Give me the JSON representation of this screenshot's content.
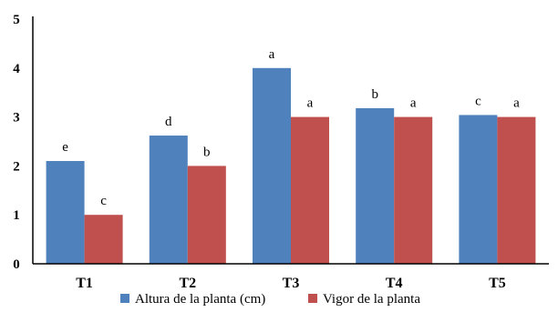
{
  "chart_data": {
    "type": "bar",
    "categories": [
      "T1",
      "T2",
      "T3",
      "T4",
      "T5"
    ],
    "series": [
      {
        "name": "Altura de la planta (cm)",
        "color": "#4f81bd",
        "values": [
          2.1,
          2.62,
          4.0,
          3.18,
          3.04
        ],
        "labels": [
          "e",
          "d",
          "a",
          "b",
          "c"
        ]
      },
      {
        "name": "Vigor de la planta",
        "color": "#c0504d",
        "values": [
          1.0,
          2.0,
          3.0,
          3.0,
          3.0
        ],
        "labels": [
          "c",
          "b",
          "a",
          "a",
          "a"
        ]
      }
    ],
    "ylim": [
      0,
      5
    ],
    "yticks": [
      "0",
      "1",
      "2",
      "3",
      "4",
      "5"
    ],
    "grid": false,
    "legend": "bottom"
  }
}
